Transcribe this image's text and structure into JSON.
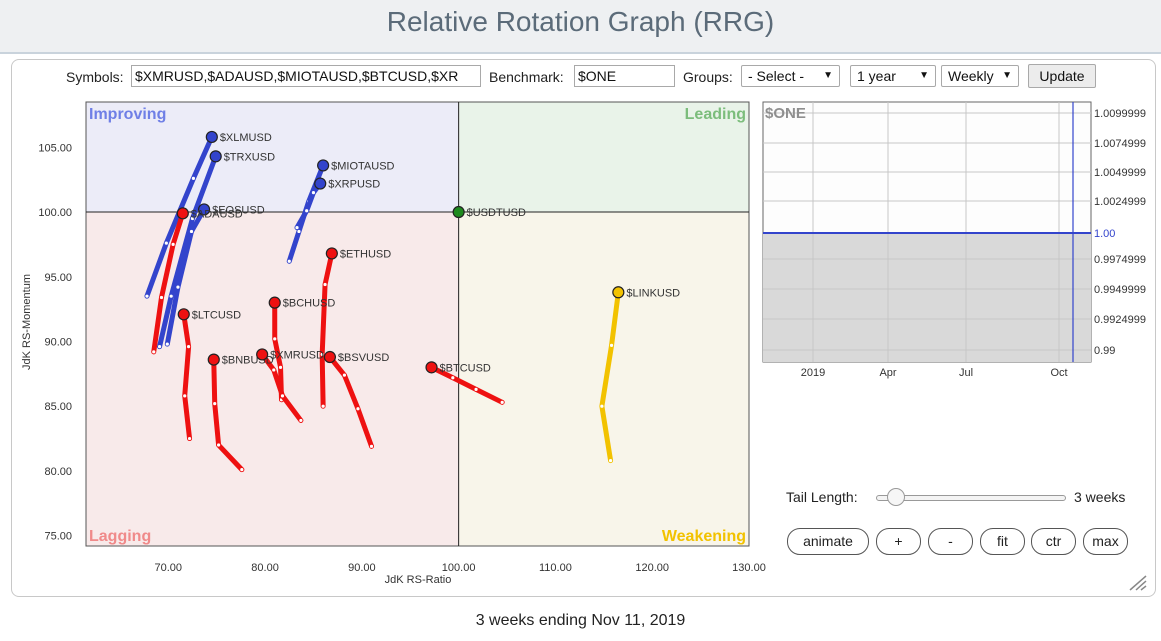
{
  "page": {
    "title": "Relative Rotation Graph (RRG)",
    "footer": "3 weeks ending Nov 11, 2019"
  },
  "toolbar": {
    "symbols_label": "Symbols:",
    "symbols_value": "$XMRUSD,$ADAUSD,$MIOTAUSD,$BTCUSD,$XR",
    "benchmark_label": "Benchmark:",
    "benchmark_value": "$ONE",
    "groups_label": "Groups:",
    "groups_value": "- Select -",
    "period_value": "1 year",
    "interval_value": "Weekly",
    "update_label": "Update",
    "dropdown_icon": "▼"
  },
  "controls": {
    "tail_length_label": "Tail Length:",
    "tail_length_value": "3 weeks",
    "tail_length_weeks": 3,
    "buttons": [
      "animate",
      "+",
      "-",
      "fit",
      "ctr",
      "max"
    ]
  },
  "chart_data": [
    {
      "type": "scatter",
      "title": "",
      "xlabel": "JdK RS-Ratio",
      "ylabel": "JdK RS-Momentum",
      "xlim": [
        61.5,
        130
      ],
      "ylim": [
        74.2,
        108.5
      ],
      "x_ticks": [
        70,
        80,
        90,
        100,
        110,
        120,
        130
      ],
      "x_tick_labels": [
        "70.00",
        "80.00",
        "90.00",
        "100.00",
        "110.00",
        "120.00",
        "130.00"
      ],
      "y_ticks": [
        75,
        80,
        85,
        90,
        95,
        100,
        105
      ],
      "y_tick_labels": [
        "75.00",
        "80.00",
        "85.00",
        "90.00",
        "95.00",
        "100.00",
        "105.00"
      ],
      "center": [
        100,
        100
      ],
      "quadrants": [
        {
          "name": "Improving",
          "color": "#6f7fe6",
          "fill": "#ececf8"
        },
        {
          "name": "Leading",
          "color": "#7cbd7c",
          "fill": "#e9f3e9"
        },
        {
          "name": "Lagging",
          "color": "#f08a8a",
          "fill": "#f8eaea"
        },
        {
          "name": "Weakening",
          "color": "#f2c200",
          "fill": "#f8f5ea"
        }
      ],
      "series": [
        {
          "name": "$XLMUSD",
          "color": "#3344cc",
          "points": [
            [
              67.8,
              93.5
            ],
            [
              69.8,
              97.6
            ],
            [
              72.6,
              102.6
            ],
            [
              74.5,
              105.8
            ]
          ]
        },
        {
          "name": "$TRXUSD",
          "color": "#3344cc",
          "points": [
            [
              69.1,
              89.6
            ],
            [
              70.3,
              93.5
            ],
            [
              72.5,
              99.5
            ],
            [
              74.9,
              104.3
            ]
          ]
        },
        {
          "name": "$EOSUSD",
          "color": "#3344cc",
          "points": [
            [
              69.9,
              89.8
            ],
            [
              71.0,
              94.2
            ],
            [
              72.4,
              98.5
            ],
            [
              73.7,
              100.2
            ]
          ]
        },
        {
          "name": "$ADAUSD",
          "color": "#ee1111",
          "points": [
            [
              68.5,
              89.2
            ],
            [
              69.3,
              93.4
            ],
            [
              70.5,
              97.5
            ],
            [
              71.5,
              99.9
            ]
          ]
        },
        {
          "name": "$MIOTAUSD",
          "color": "#3344cc",
          "points": [
            [
              82.5,
              96.2
            ],
            [
              83.5,
              98.5
            ],
            [
              84.5,
              100.8
            ],
            [
              86.0,
              103.6
            ]
          ]
        },
        {
          "name": "$XRPUSD",
          "color": "#3344cc",
          "points": [
            [
              83.3,
              98.8
            ],
            [
              84.3,
              100.1
            ],
            [
              85.0,
              101.5
            ],
            [
              85.7,
              102.2
            ]
          ]
        },
        {
          "name": "$USDTUSD",
          "color": "#1e8a1e",
          "points": [
            [
              100.0,
              100.0
            ]
          ]
        },
        {
          "name": "$ETHUSD",
          "color": "#ee1111",
          "points": [
            [
              86.0,
              85.0
            ],
            [
              85.9,
              89.0
            ],
            [
              86.2,
              94.4
            ],
            [
              86.9,
              96.8
            ]
          ]
        },
        {
          "name": "$BCHUSD",
          "color": "#ee1111",
          "points": [
            [
              81.7,
              85.5
            ],
            [
              81.6,
              88.0
            ],
            [
              81.0,
              90.2
            ],
            [
              81.0,
              93.0
            ]
          ]
        },
        {
          "name": "$LTCUSD",
          "color": "#ee1111",
          "points": [
            [
              72.2,
              82.5
            ],
            [
              71.7,
              85.8
            ],
            [
              72.1,
              89.6
            ],
            [
              71.6,
              92.1
            ]
          ]
        },
        {
          "name": "$BNBUSD",
          "color": "#ee1111",
          "points": [
            [
              77.6,
              80.1
            ],
            [
              75.2,
              82.0
            ],
            [
              74.8,
              85.2
            ],
            [
              74.7,
              88.6
            ]
          ]
        },
        {
          "name": "$XMRUSD",
          "color": "#ee1111",
          "points": [
            [
              83.7,
              83.9
            ],
            [
              81.8,
              85.8
            ],
            [
              80.9,
              87.8
            ],
            [
              79.7,
              89.0
            ]
          ]
        },
        {
          "name": "$BSVUSD",
          "color": "#ee1111",
          "points": [
            [
              91.0,
              81.9
            ],
            [
              89.6,
              84.8
            ],
            [
              88.2,
              87.4
            ],
            [
              86.7,
              88.8
            ]
          ]
        },
        {
          "name": "$BTCUSD",
          "color": "#ee1111",
          "points": [
            [
              104.5,
              85.3
            ],
            [
              101.8,
              86.3
            ],
            [
              99.4,
              87.2
            ],
            [
              97.2,
              88.0
            ]
          ]
        },
        {
          "name": "$LINKUSD",
          "color": "#f2c200",
          "points": [
            [
              115.7,
              80.8
            ],
            [
              114.8,
              85.0
            ],
            [
              115.8,
              89.7
            ],
            [
              116.5,
              93.8
            ]
          ]
        }
      ]
    },
    {
      "type": "line",
      "title": "$ONE",
      "y_tick_labels": [
        "1.0099999",
        "1.0074999",
        "1.0049999",
        "1.0024999",
        "1.00",
        "0.9974999",
        "0.9949999",
        "0.9924999",
        "0.99"
      ],
      "x_tick_labels": [
        "2019",
        "Apr",
        "Jul",
        "Oct"
      ],
      "series": [
        {
          "values": [
            1.0,
            1.0
          ]
        }
      ]
    }
  ]
}
